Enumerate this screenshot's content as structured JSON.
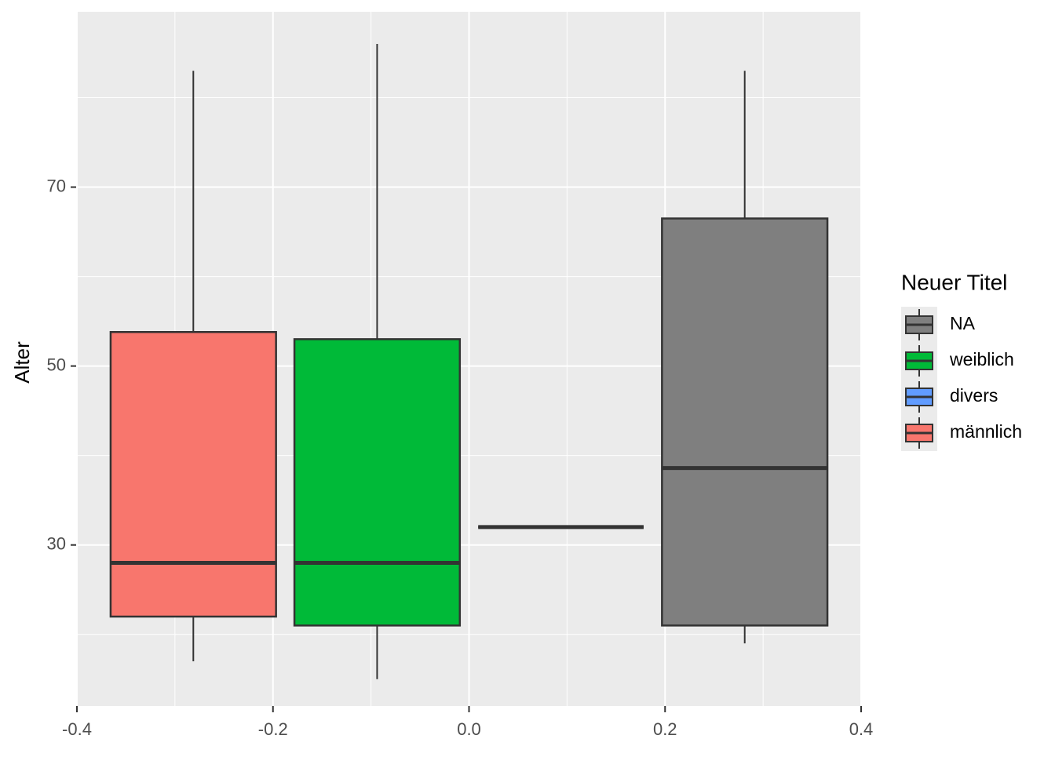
{
  "chart_data": {
    "type": "boxplot",
    "y_label": "Alter",
    "legend_title": "Neuer Titel",
    "xlim": [
      -0.4,
      0.4
    ],
    "xticks": [
      -0.4,
      -0.2,
      {
        "value": 0,
        "label": "0.0"
      },
      0.2,
      0.4
    ],
    "ylim": [
      12,
      89.6
    ],
    "yticks": [
      30,
      50,
      70
    ],
    "grid": true,
    "legend": "right",
    "series": [
      {
        "name": "NA",
        "color": "#7f7f7f",
        "x": 0.28125,
        "low": 19,
        "q1": 21,
        "median": 38.6,
        "q3": 66.5,
        "high": 83
      },
      {
        "name": "weiblich",
        "color": "#00ba38",
        "x": -0.09375,
        "low": 15,
        "q1": 21,
        "median": 28,
        "q3": 53,
        "high": 86
      },
      {
        "name": "divers",
        "color": "#619cff",
        "x": 0.09375,
        "low": 32,
        "q1": 32,
        "median": 32,
        "q3": 32,
        "high": 32
      },
      {
        "name": "männlich",
        "color": "#f8766d",
        "x": -0.28125,
        "low": 17,
        "q1": 22,
        "median": 28,
        "q3": 53.8,
        "high": 83
      }
    ]
  }
}
